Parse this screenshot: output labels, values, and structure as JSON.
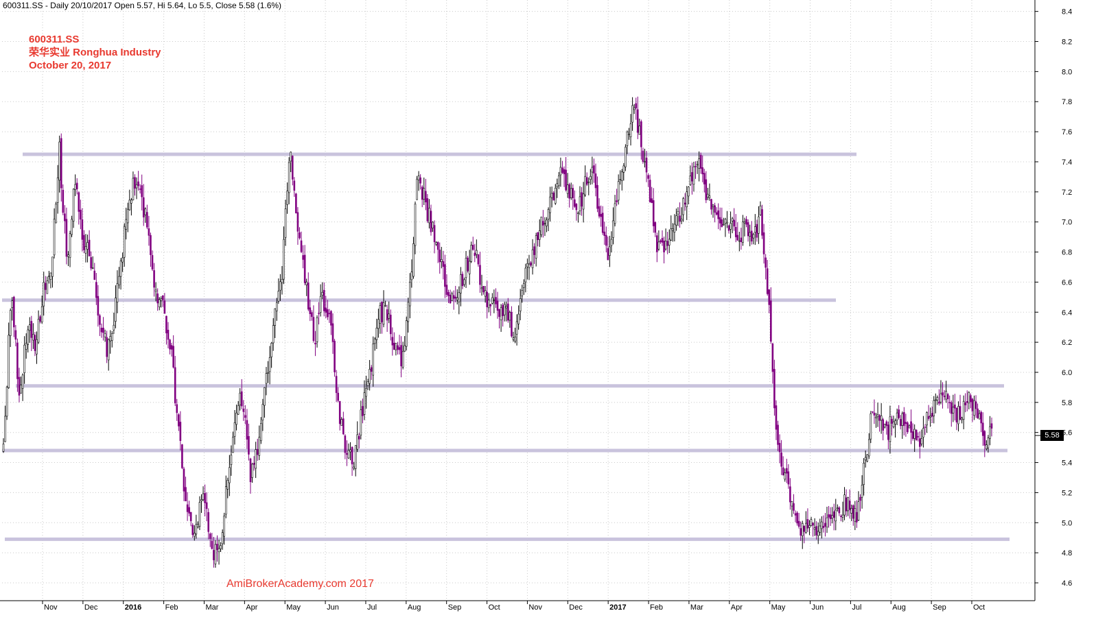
{
  "header": {
    "info": "600311.SS - Daily 20/10/2017 Open 5.57, Hi 5.64, Lo 5.5, Close 5.58 (1.6%)"
  },
  "annotation": {
    "ticker": "600311.SS",
    "name": "荣华实业  Ronghua Industry",
    "date": "October 20, 2017"
  },
  "watermark": "AmiBroker​Academy.com 2017",
  "last_price_label": "5.58",
  "colors": {
    "up_candle": "#ffffff",
    "down_candle": "#800080",
    "support_line": "#c9c3dd",
    "annotation": "#e8392f"
  },
  "chart_data": {
    "type": "candlestick",
    "ylim": [
      4.5,
      8.45
    ],
    "y_ticks": [
      "4.6",
      "4.8",
      "5.0",
      "5.2",
      "5.4",
      "5.6",
      "5.8",
      "6.0",
      "6.2",
      "6.4",
      "6.6",
      "6.8",
      "7.0",
      "7.2",
      "7.4",
      "7.6",
      "7.8",
      "8.0",
      "8.2",
      "8.4"
    ],
    "x_ticks": [
      {
        "label": "Nov",
        "bold": false
      },
      {
        "label": "Dec",
        "bold": false
      },
      {
        "label": "2016",
        "bold": true
      },
      {
        "label": "Feb",
        "bold": false
      },
      {
        "label": "Mar",
        "bold": false
      },
      {
        "label": "Apr",
        "bold": false
      },
      {
        "label": "May",
        "bold": false
      },
      {
        "label": "Jun",
        "bold": false
      },
      {
        "label": "Jul",
        "bold": false
      },
      {
        "label": "Aug",
        "bold": false
      },
      {
        "label": "Sep",
        "bold": false
      },
      {
        "label": "Oct",
        "bold": false
      },
      {
        "label": "Nov",
        "bold": false
      },
      {
        "label": "Dec",
        "bold": false
      },
      {
        "label": "2017",
        "bold": true
      },
      {
        "label": "Feb",
        "bold": false
      },
      {
        "label": "Mar",
        "bold": false
      },
      {
        "label": "Apr",
        "bold": false
      },
      {
        "label": "May",
        "bold": false
      },
      {
        "label": "Jun",
        "bold": false
      },
      {
        "label": "Jul",
        "bold": false
      },
      {
        "label": "Aug",
        "bold": false
      },
      {
        "label": "Sep",
        "bold": false
      },
      {
        "label": "Oct",
        "bold": false
      }
    ],
    "support_resistance_levels": [
      7.45,
      6.48,
      5.91,
      5.48,
      4.89
    ],
    "price_path": [
      5.5,
      6.55,
      5.85,
      6.3,
      6.15,
      6.55,
      6.65,
      7.5,
      6.7,
      7.3,
      6.85,
      6.75,
      6.35,
      6.15,
      6.4,
      6.85,
      7.2,
      7.3,
      6.95,
      6.55,
      6.45,
      6.15,
      5.6,
      5.05,
      4.95,
      5.2,
      4.85,
      4.75,
      5.25,
      5.7,
      5.85,
      5.3,
      5.55,
      5.95,
      6.35,
      6.7,
      7.5,
      6.9,
      6.55,
      6.2,
      6.5,
      6.4,
      5.75,
      5.5,
      5.4,
      5.75,
      6.0,
      6.35,
      6.45,
      6.15,
      6.05,
      6.55,
      7.35,
      7.1,
      6.95,
      6.7,
      6.45,
      6.55,
      6.7,
      6.85,
      6.6,
      6.45,
      6.4,
      6.45,
      6.25,
      6.5,
      6.75,
      6.9,
      7.05,
      7.2,
      7.35,
      7.2,
      7.05,
      7.25,
      7.3,
      7.0,
      6.75,
      7.2,
      7.45,
      7.8,
      7.55,
      7.2,
      6.85,
      6.85,
      6.95,
      7.05,
      7.25,
      7.45,
      7.2,
      7.05,
      6.95,
      7.0,
      6.9,
      6.95,
      6.85,
      7.05,
      6.45,
      5.55,
      5.35,
      5.15,
      4.95,
      5.0,
      4.9,
      5.0,
      5.05,
      5.1,
      5.15,
      5.05,
      5.35,
      5.75,
      5.65,
      5.6,
      5.75,
      5.65,
      5.6,
      5.55,
      5.75,
      5.8,
      5.85,
      5.75,
      5.7,
      5.85,
      5.75,
      5.55,
      5.6
    ],
    "last": {
      "date": "20/10/2017",
      "open": 5.57,
      "high": 5.64,
      "low": 5.5,
      "close": 5.58,
      "change_pct": 1.6
    }
  }
}
